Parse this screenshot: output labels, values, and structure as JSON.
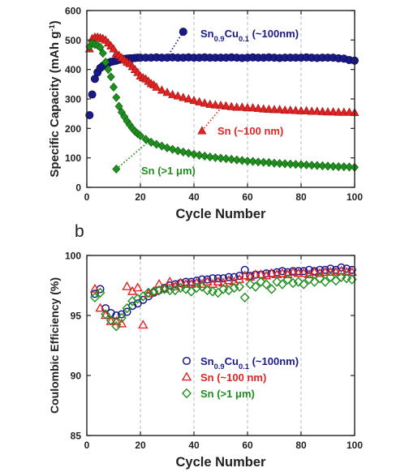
{
  "chart_data": [
    {
      "type": "scatter",
      "panel_label": "",
      "xlabel": "Cycle Number",
      "ylabel": "Specific Capacity (mAh g",
      "ylabel_sup": "-1",
      "ylabel_end": ")",
      "xlim": [
        0,
        100
      ],
      "ylim": [
        0,
        600
      ],
      "xticks": [
        0,
        20,
        40,
        60,
        80,
        100
      ],
      "yticks": [
        0,
        100,
        200,
        300,
        400,
        500,
        600
      ],
      "grid": "vertical-dashed",
      "series": [
        {
          "name": "Sn0.9Cu0.1 (~100nm)",
          "label_main": "Sn",
          "label_sub1": "0.9",
          "label_mid": "Cu",
          "label_sub2": "0.1",
          "label_end": " (~100nm)",
          "marker": "circle",
          "color": "#1a1a8c",
          "x": [
            1,
            2,
            3,
            4,
            5,
            6,
            7,
            8,
            9,
            10,
            11,
            12,
            13,
            14,
            15,
            16,
            17,
            18,
            19,
            20,
            22,
            24,
            26,
            28,
            30,
            32,
            34,
            36,
            38,
            40,
            42,
            44,
            46,
            48,
            50,
            52,
            54,
            56,
            58,
            60,
            62,
            64,
            66,
            68,
            70,
            72,
            74,
            76,
            78,
            80,
            82,
            84,
            86,
            88,
            90,
            92,
            94,
            96,
            98,
            100
          ],
          "y": [
            245,
            315,
            368,
            390,
            405,
            412,
            418,
            422,
            426,
            428,
            430,
            433,
            435,
            436,
            437,
            438,
            438,
            439,
            440,
            440,
            440,
            440,
            441,
            440,
            440,
            441,
            440,
            440,
            441,
            440,
            440,
            441,
            440,
            440,
            440,
            440,
            441,
            440,
            439,
            440,
            441,
            440,
            440,
            441,
            440,
            439,
            440,
            440,
            440,
            440,
            441,
            440,
            439,
            440,
            440,
            440,
            438,
            437,
            432,
            430
          ]
        },
        {
          "name": "Sn (~100 nm)",
          "label": "Sn (~100 nm)",
          "marker": "triangle",
          "color": "#e02424",
          "x": [
            1,
            2,
            3,
            4,
            5,
            6,
            7,
            8,
            9,
            10,
            11,
            12,
            13,
            14,
            15,
            16,
            17,
            18,
            19,
            20,
            21,
            22,
            23,
            24,
            25,
            26,
            28,
            30,
            32,
            34,
            36,
            38,
            40,
            42,
            44,
            46,
            48,
            50,
            52,
            54,
            56,
            58,
            60,
            62,
            64,
            66,
            68,
            70,
            72,
            74,
            76,
            78,
            80,
            82,
            84,
            86,
            88,
            90,
            92,
            94,
            96,
            98,
            100
          ],
          "y": [
            470,
            505,
            510,
            510,
            508,
            505,
            500,
            490,
            480,
            470,
            455,
            448,
            440,
            432,
            425,
            420,
            410,
            400,
            390,
            378,
            372,
            368,
            360,
            352,
            348,
            340,
            330,
            322,
            315,
            310,
            305,
            300,
            295,
            290,
            286,
            282,
            280,
            278,
            276,
            274,
            272,
            272,
            270,
            270,
            268,
            266,
            265,
            264,
            264,
            262,
            262,
            261,
            260,
            260,
            258,
            258,
            257,
            256,
            256,
            255,
            255,
            255,
            254
          ]
        },
        {
          "name": "Sn (>1 μm)",
          "label": "Sn (>1 μm)",
          "marker": "diamond",
          "color": "#1f8f1f",
          "x": [
            1,
            2,
            3,
            4,
            5,
            6,
            7,
            8,
            9,
            10,
            11,
            12,
            13,
            14,
            15,
            16,
            17,
            18,
            19,
            20,
            22,
            24,
            26,
            28,
            30,
            32,
            34,
            36,
            38,
            40,
            42,
            44,
            46,
            48,
            50,
            52,
            54,
            56,
            58,
            60,
            62,
            64,
            66,
            68,
            70,
            72,
            74,
            76,
            78,
            80,
            82,
            84,
            86,
            88,
            90,
            92,
            94,
            96,
            98,
            100
          ],
          "y": [
            478,
            488,
            485,
            482,
            475,
            455,
            425,
            400,
            375,
            340,
            305,
            275,
            255,
            240,
            225,
            212,
            200,
            190,
            182,
            175,
            163,
            153,
            146,
            140,
            134,
            129,
            124,
            120,
            116,
            112,
            109,
            106,
            103,
            101,
            99,
            97,
            95,
            93,
            91,
            89,
            88,
            86,
            85,
            84,
            82,
            81,
            80,
            79,
            78,
            77,
            76,
            75,
            74,
            73,
            72,
            71,
            70,
            70,
            69,
            68
          ]
        }
      ]
    },
    {
      "type": "scatter",
      "panel_label": "b",
      "xlabel": "Cycle Number",
      "ylabel": "Coulombic Efficiency (%)",
      "xlim": [
        0,
        100
      ],
      "ylim": [
        85,
        100
      ],
      "xticks": [
        0,
        20,
        40,
        60,
        80,
        100
      ],
      "yticks": [
        85,
        90,
        95,
        100
      ],
      "grid": "vertical-dashed",
      "legend": "center-bottom",
      "series": [
        {
          "name": "Sn0.9Cu0.1 (~100nm)",
          "label_main": "Sn",
          "label_sub1": "0.9",
          "label_mid": "Cu",
          "label_sub2": "0.1",
          "label_end": " (~100nm)",
          "marker": "open-circle",
          "color": "#1a1a8c",
          "x": [
            3,
            5,
            7,
            9,
            11,
            13,
            15,
            17,
            19,
            21,
            23,
            25,
            27,
            29,
            31,
            33,
            35,
            37,
            39,
            41,
            43,
            45,
            47,
            49,
            51,
            53,
            55,
            57,
            59,
            61,
            63,
            65,
            67,
            69,
            71,
            73,
            75,
            77,
            79,
            81,
            83,
            85,
            87,
            89,
            91,
            93,
            95,
            97,
            99
          ],
          "y": [
            96.8,
            97.2,
            95.6,
            95.2,
            95.0,
            95.1,
            95.3,
            95.8,
            96.0,
            96.3,
            96.6,
            96.9,
            97.1,
            97.3,
            97.5,
            97.6,
            97.7,
            97.8,
            97.8,
            97.9,
            98.0,
            98.0,
            98.1,
            98.1,
            98.1,
            98.2,
            98.2,
            98.3,
            98.8,
            98.3,
            98.4,
            98.4,
            98.5,
            98.5,
            98.6,
            98.7,
            98.6,
            98.7,
            98.7,
            98.7,
            98.8,
            98.7,
            98.8,
            98.8,
            98.9,
            98.8,
            99.0,
            98.9,
            98.8
          ]
        },
        {
          "name": "Sn (~100 nm)",
          "label": "Sn (~100 nm)",
          "marker": "open-triangle",
          "color": "#e02424",
          "x": [
            3,
            5,
            7,
            9,
            11,
            13,
            15,
            17,
            19,
            21,
            23,
            25,
            27,
            29,
            31,
            33,
            35,
            37,
            39,
            41,
            43,
            45,
            47,
            49,
            51,
            53,
            55,
            57,
            59,
            61,
            63,
            65,
            67,
            69,
            71,
            73,
            75,
            77,
            79,
            81,
            83,
            85,
            87,
            89,
            91,
            93,
            95,
            97,
            99
          ],
          "y": [
            97.2,
            95.6,
            95.0,
            94.5,
            94.5,
            94.3,
            97.4,
            97.0,
            97.3,
            94.2,
            96.8,
            97.0,
            97.6,
            97.2,
            97.8,
            97.4,
            97.7,
            97.6,
            97.6,
            97.7,
            97.6,
            97.8,
            97.6,
            97.8,
            97.7,
            97.9,
            97.8,
            98.0,
            98.3,
            98.2,
            98.4,
            98.4,
            98.3,
            98.5,
            98.4,
            98.5,
            98.4,
            98.6,
            98.5,
            98.5,
            98.4,
            98.6,
            98.5,
            98.6,
            98.6,
            98.6,
            98.7,
            98.6,
            98.6
          ]
        },
        {
          "name": "Sn (>1 μm)",
          "label": "Sn (>1 μm)",
          "marker": "open-diamond",
          "color": "#1f8f1f",
          "x": [
            3,
            5,
            7,
            9,
            11,
            13,
            15,
            17,
            19,
            21,
            23,
            25,
            27,
            29,
            31,
            33,
            35,
            37,
            39,
            41,
            43,
            45,
            47,
            49,
            51,
            53,
            55,
            57,
            59,
            61,
            63,
            65,
            67,
            69,
            71,
            73,
            75,
            77,
            79,
            81,
            83,
            85,
            87,
            89,
            91,
            93,
            95,
            97,
            99
          ],
          "y": [
            96.5,
            96.9,
            95.1,
            94.6,
            94.1,
            94.8,
            95.6,
            96.2,
            96.4,
            96.6,
            96.9,
            97.0,
            97.1,
            97.2,
            97.1,
            97.1,
            97.3,
            97.2,
            97.0,
            97.3,
            97.4,
            97.1,
            97.0,
            96.9,
            97.2,
            97.1,
            97.3,
            97.4,
            96.5,
            97.6,
            97.4,
            97.8,
            97.6,
            97.2,
            97.8,
            97.6,
            98.0,
            97.7,
            97.8,
            97.6,
            98.0,
            97.8,
            98.1,
            97.8,
            98.2,
            97.9,
            98.2,
            98.1,
            98.0
          ]
        }
      ]
    }
  ]
}
